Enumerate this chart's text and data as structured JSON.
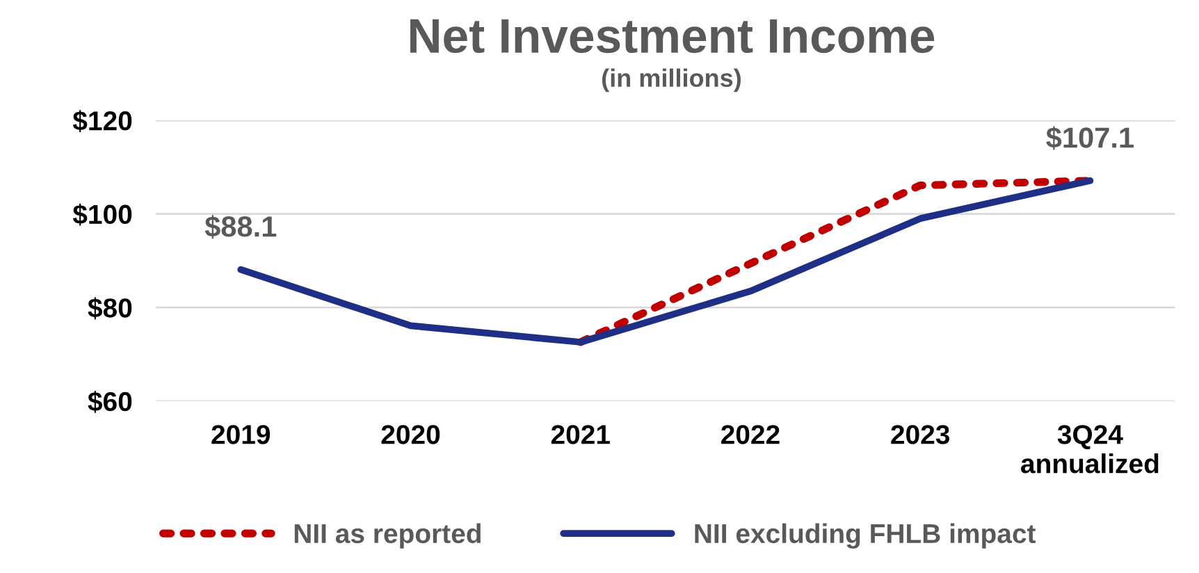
{
  "chart_data": {
    "type": "line",
    "title": "Net Investment Income",
    "subtitle": "(in millions)",
    "categories": [
      "2019",
      "2020",
      "2021",
      "2022",
      "2023",
      "3Q24\nannualized"
    ],
    "series": [
      {
        "name": "NII as reported",
        "color": "#c00000",
        "line_style": "dotted",
        "values": [
          null,
          null,
          72.6,
          89.4,
          106.1,
          107.1
        ]
      },
      {
        "name": "NII excluding FHLB impact",
        "color": "#1f2f86",
        "line_style": "solid",
        "values": [
          88.1,
          76.1,
          72.6,
          83.5,
          99.0,
          107.1
        ],
        "value_labels": [
          "$88.1",
          null,
          null,
          null,
          null,
          "$107.1"
        ]
      }
    ],
    "ylim": [
      60,
      120
    ],
    "yticks": [
      {
        "value": 60,
        "label": "$60"
      },
      {
        "value": 80,
        "label": "$80"
      },
      {
        "value": 100,
        "label": "$100"
      },
      {
        "value": 120,
        "label": "$120"
      }
    ],
    "grid": "y",
    "legend": "bottom",
    "marker": "none"
  }
}
